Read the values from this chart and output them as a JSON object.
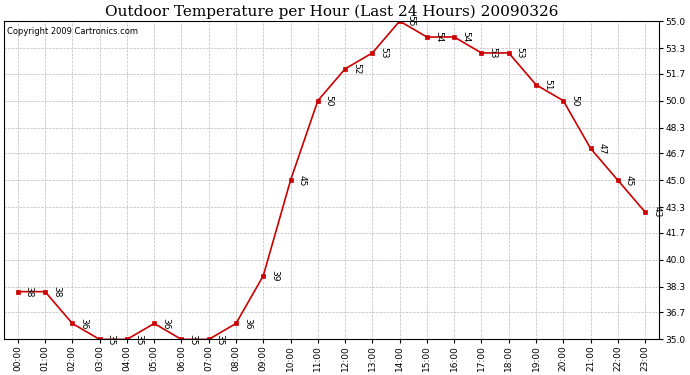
{
  "title": "Outdoor Temperature per Hour (Last 24 Hours) 20090326",
  "copyright": "Copyright 2009 Cartronics.com",
  "hours": [
    "00:00",
    "01:00",
    "02:00",
    "03:00",
    "04:00",
    "05:00",
    "06:00",
    "07:00",
    "08:00",
    "09:00",
    "10:00",
    "11:00",
    "12:00",
    "13:00",
    "14:00",
    "15:00",
    "16:00",
    "17:00",
    "18:00",
    "19:00",
    "20:00",
    "21:00",
    "22:00",
    "23:00"
  ],
  "temps": [
    38,
    38,
    36,
    35,
    35,
    36,
    35,
    35,
    36,
    39,
    45,
    50,
    52,
    53,
    55,
    54,
    54,
    53,
    53,
    51,
    50,
    47,
    45,
    43
  ],
  "line_color": "#cc0000",
  "marker_color": "#cc0000",
  "bg_color": "#ffffff",
  "grid_color": "#bbbbbb",
  "ylim_min": 35.0,
  "ylim_max": 55.0,
  "yticks": [
    35.0,
    36.7,
    38.3,
    40.0,
    41.7,
    43.3,
    45.0,
    46.7,
    48.3,
    50.0,
    51.7,
    53.3,
    55.0
  ],
  "title_fontsize": 11,
  "tick_fontsize": 6.5,
  "annot_fontsize": 6.5,
  "copyright_fontsize": 6
}
